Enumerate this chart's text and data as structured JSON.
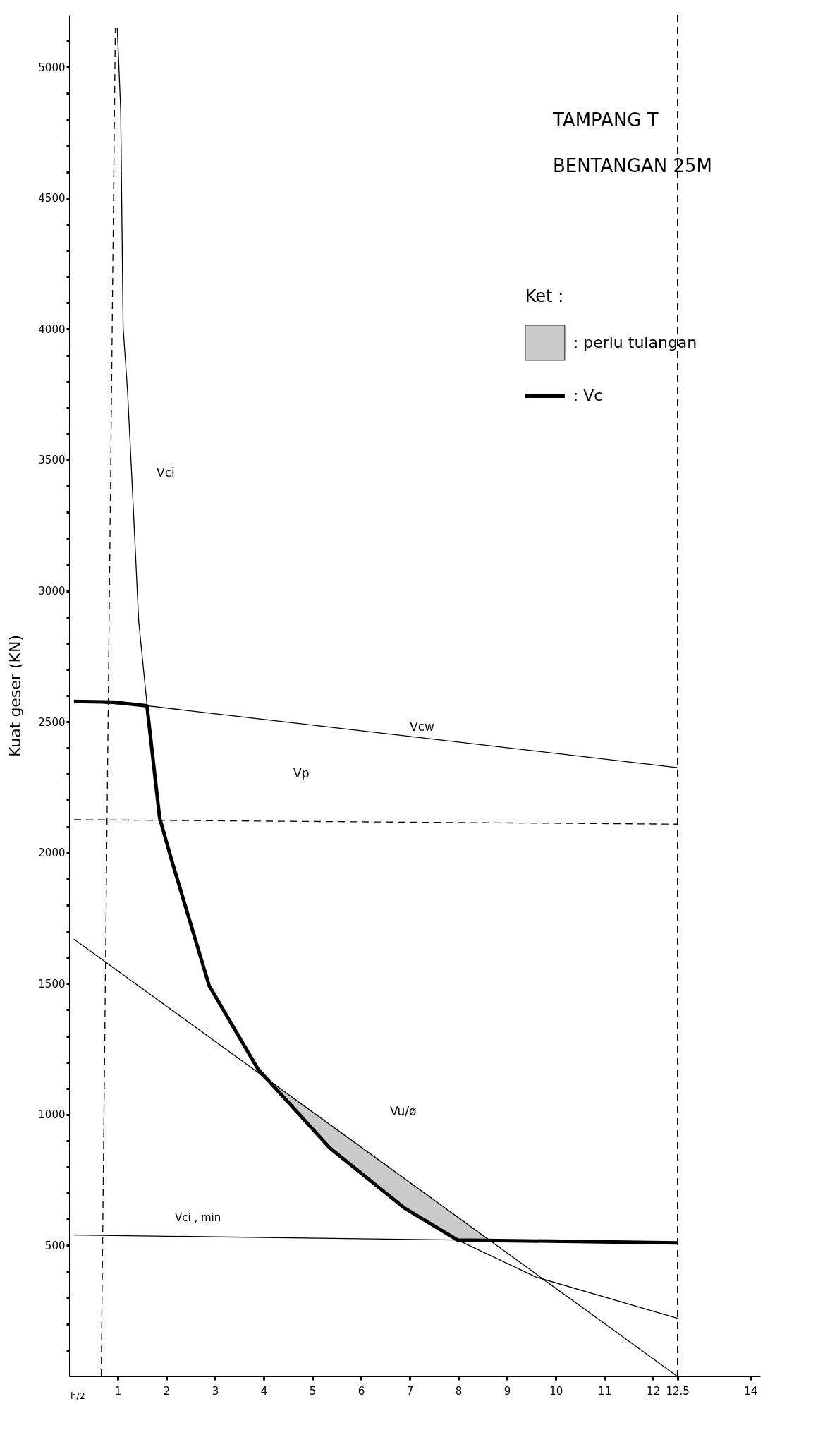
{
  "chart_data": {
    "type": "line",
    "title": "TAMPANG   T",
    "subtitle": "BENTANGAN   25M",
    "ylabel": "Kuat geser (KN)",
    "legend_title": "Ket :",
    "legend": "top right",
    "grid": false,
    "marker": "none",
    "xlim": [
      0,
      14.2
    ],
    "ylim": [
      0,
      5200
    ],
    "xticks": [
      1,
      2,
      3,
      4,
      5,
      6,
      7,
      8,
      9,
      10,
      11,
      12,
      12.5,
      14
    ],
    "yticks": [
      {
        "value": 100,
        "label": null
      },
      {
        "value": 200,
        "label": null
      },
      {
        "value": 300,
        "label": null
      },
      {
        "value": 400,
        "label": null
      },
      500,
      {
        "value": 600,
        "label": null
      },
      {
        "value": 700,
        "label": null
      },
      {
        "value": 800,
        "label": null
      },
      {
        "value": 900,
        "label": null
      },
      1000,
      {
        "value": 1100,
        "label": null
      },
      {
        "value": 1200,
        "label": null
      },
      {
        "value": 1300,
        "label": null
      },
      {
        "value": 1400,
        "label": null
      },
      1500,
      {
        "value": 1600,
        "label": null
      },
      {
        "value": 1700,
        "label": null
      },
      {
        "value": 1800,
        "label": null
      },
      {
        "value": 1900,
        "label": null
      },
      2000,
      {
        "value": 2100,
        "label": null
      },
      {
        "value": 2200,
        "label": null
      },
      {
        "value": 2300,
        "label": null
      },
      {
        "value": 2400,
        "label": null
      },
      2500,
      {
        "value": 2600,
        "label": null
      },
      {
        "value": 2700,
        "label": null
      },
      {
        "value": 2800,
        "label": null
      },
      {
        "value": 2900,
        "label": null
      },
      3000,
      {
        "value": 3100,
        "label": null
      },
      {
        "value": 3200,
        "label": null
      },
      {
        "value": 3300,
        "label": null
      },
      {
        "value": 3400,
        "label": null
      },
      3500,
      {
        "value": 3600,
        "label": null
      },
      {
        "value": 3700,
        "label": null
      },
      {
        "value": 3800,
        "label": null
      },
      {
        "value": 3900,
        "label": null
      },
      4000,
      {
        "value": 4100,
        "label": null
      },
      {
        "value": 4200,
        "label": null
      },
      {
        "value": 4300,
        "label": null
      },
      {
        "value": 4400,
        "label": null
      },
      4500,
      {
        "value": 4600,
        "label": null
      },
      {
        "value": 4700,
        "label": null
      },
      {
        "value": 4800,
        "label": null
      },
      {
        "value": 4900,
        "label": null
      },
      5000,
      {
        "value": 5100,
        "label": null
      }
    ],
    "series": [
      {
        "type": "area",
        "name": ": perlu tulangan",
        "color": "#bdbdbd",
        "x": [
          3.88,
          4.5,
          5.36,
          6,
          6.89,
          7.98,
          8.64
        ],
        "values": [
          1161,
          1077,
          962,
          876,
          756,
          609,
          520
        ]
      },
      {
        "color": "#000000",
        "x": [
          0.99,
          1.06,
          1.11,
          1.2,
          1.3,
          1.43,
          1.6,
          1.86,
          2.12,
          2.88,
          3.88,
          5.36,
          6.89,
          7.98,
          9.6,
          12.5
        ],
        "values": [
          5150,
          4837,
          4006,
          3766,
          3391,
          2884,
          2568,
          2133,
          1963,
          1491,
          1174,
          872,
          643,
          521,
          379,
          222
        ]
      },
      {
        "color": "#000000",
        "x": [
          0.1,
          1.6,
          12.5
        ],
        "values": [
          2578,
          2561,
          2325
        ]
      },
      {
        "color": "#000000",
        "line_style": "dashed",
        "x": [
          0.1,
          12.5
        ],
        "values": [
          2126,
          2109
        ]
      },
      {
        "color": "#000000",
        "line_style": "dashed",
        "x": [
          0.95,
          0.66
        ],
        "values": [
          5150,
          0
        ]
      },
      {
        "color": "#000000",
        "x": [
          0.1,
          12.5
        ],
        "values": [
          1670,
          0
        ]
      },
      {
        "color": "#000000",
        "x": [
          0.1,
          12.5
        ],
        "values": [
          540,
          510
        ]
      },
      {
        "name": ": Vc",
        "color": "#000000",
        "x": [
          0.1,
          0.9,
          1.6,
          1.86,
          2.12,
          2.88,
          3.88,
          5.36,
          6.89,
          7.98,
          12.5
        ],
        "values": [
          2578,
          2575,
          2561,
          2133,
          1963,
          1491,
          1174,
          872,
          643,
          521,
          510
        ]
      }
    ],
    "ref_lines": [
      {
        "axis": "x",
        "value": 12.5,
        "line_style": "dashed",
        "color": "#000000"
      }
    ],
    "annotations": [
      "Vci",
      "Vcw",
      "Vp",
      "Vu/ø",
      "Vci , min",
      "h/2"
    ]
  }
}
